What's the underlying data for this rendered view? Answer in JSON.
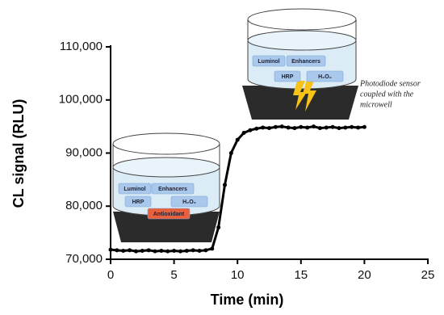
{
  "chart_data": {
    "type": "scatter",
    "xlabel": "Time (min)",
    "ylabel": "CL signal (RLU)",
    "xlim": [
      0,
      25
    ],
    "xticks": [
      0,
      5,
      10,
      15,
      20,
      25
    ],
    "ylim": [
      70000,
      110000
    ],
    "yticks": [
      {
        "value": 70000,
        "label": "70,000"
      },
      {
        "value": 80000,
        "label": "80,000"
      },
      {
        "value": 90000,
        "label": "90,000"
      },
      {
        "value": 100000,
        "label": "100,000"
      },
      {
        "value": 110000,
        "label": "110,000"
      }
    ],
    "series": [
      {
        "color": "#000000",
        "x": [
          0,
          0.5,
          1,
          1.5,
          2,
          2.5,
          3,
          3.5,
          4,
          4.5,
          5,
          5.5,
          6,
          6.5,
          7,
          7.5,
          8,
          8.5,
          9,
          9.5,
          10,
          10.5,
          11,
          11.5,
          12,
          12.5,
          13,
          13.5,
          14,
          14.5,
          15,
          15.5,
          16,
          16.5,
          17,
          17.5,
          18,
          18.5,
          19,
          19.5,
          20
        ],
        "values": [
          71800,
          71700,
          71600,
          71700,
          71500,
          71600,
          71700,
          71500,
          71600,
          71500,
          71600,
          71500,
          71600,
          71700,
          71600,
          71700,
          72000,
          76000,
          84000,
          90000,
          92500,
          93800,
          94300,
          94600,
          94800,
          94700,
          94900,
          95000,
          94800,
          94700,
          94900,
          94800,
          95000,
          94700,
          94800,
          94900,
          94700,
          94800,
          94900,
          94800,
          94900
        ]
      }
    ],
    "left_well": {
      "labels": [
        "Luminol",
        "Enhancers",
        "HRP",
        "H₂O₂",
        "Antioxidant"
      ]
    },
    "right_well": {
      "labels": [
        "Luminol",
        "Enhancers",
        "HRP",
        "H₂O₂"
      ]
    },
    "sensor_note": [
      "Photodiode sensor",
      "coupled with the",
      "microwell"
    ]
  }
}
